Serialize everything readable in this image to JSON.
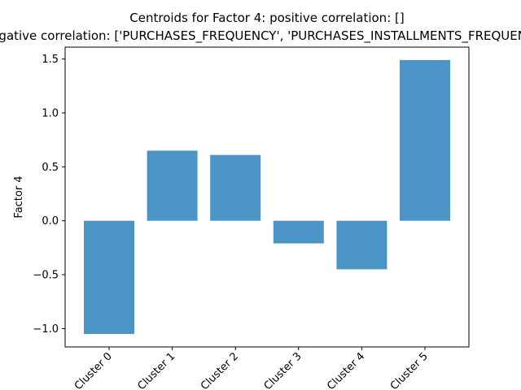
{
  "chart_data": {
    "type": "bar",
    "title": "Centroids for Factor 4: positive correlation: []",
    "subtitle": "negative correlation: ['PURCHASES_FREQUENCY', 'PURCHASES_INSTALLMENTS_FREQUENCY']",
    "xlabel": "",
    "ylabel": "Factor 4",
    "categories": [
      "Cluster 0",
      "Cluster 1",
      "Cluster 2",
      "Cluster 3",
      "Cluster 4",
      "Cluster 5"
    ],
    "values": [
      -1.05,
      0.65,
      0.61,
      -0.21,
      -0.45,
      1.49
    ],
    "ylim": [
      -1.17,
      1.61
    ],
    "yticks": [
      -1.0,
      -0.5,
      0.0,
      0.5,
      1.0,
      1.5
    ],
    "ytick_labels": [
      "−1.0",
      "−0.5",
      "0.0",
      "0.5",
      "1.0",
      "1.5"
    ],
    "bar_color": "#4b94c6",
    "grid": false,
    "legend": "none"
  }
}
